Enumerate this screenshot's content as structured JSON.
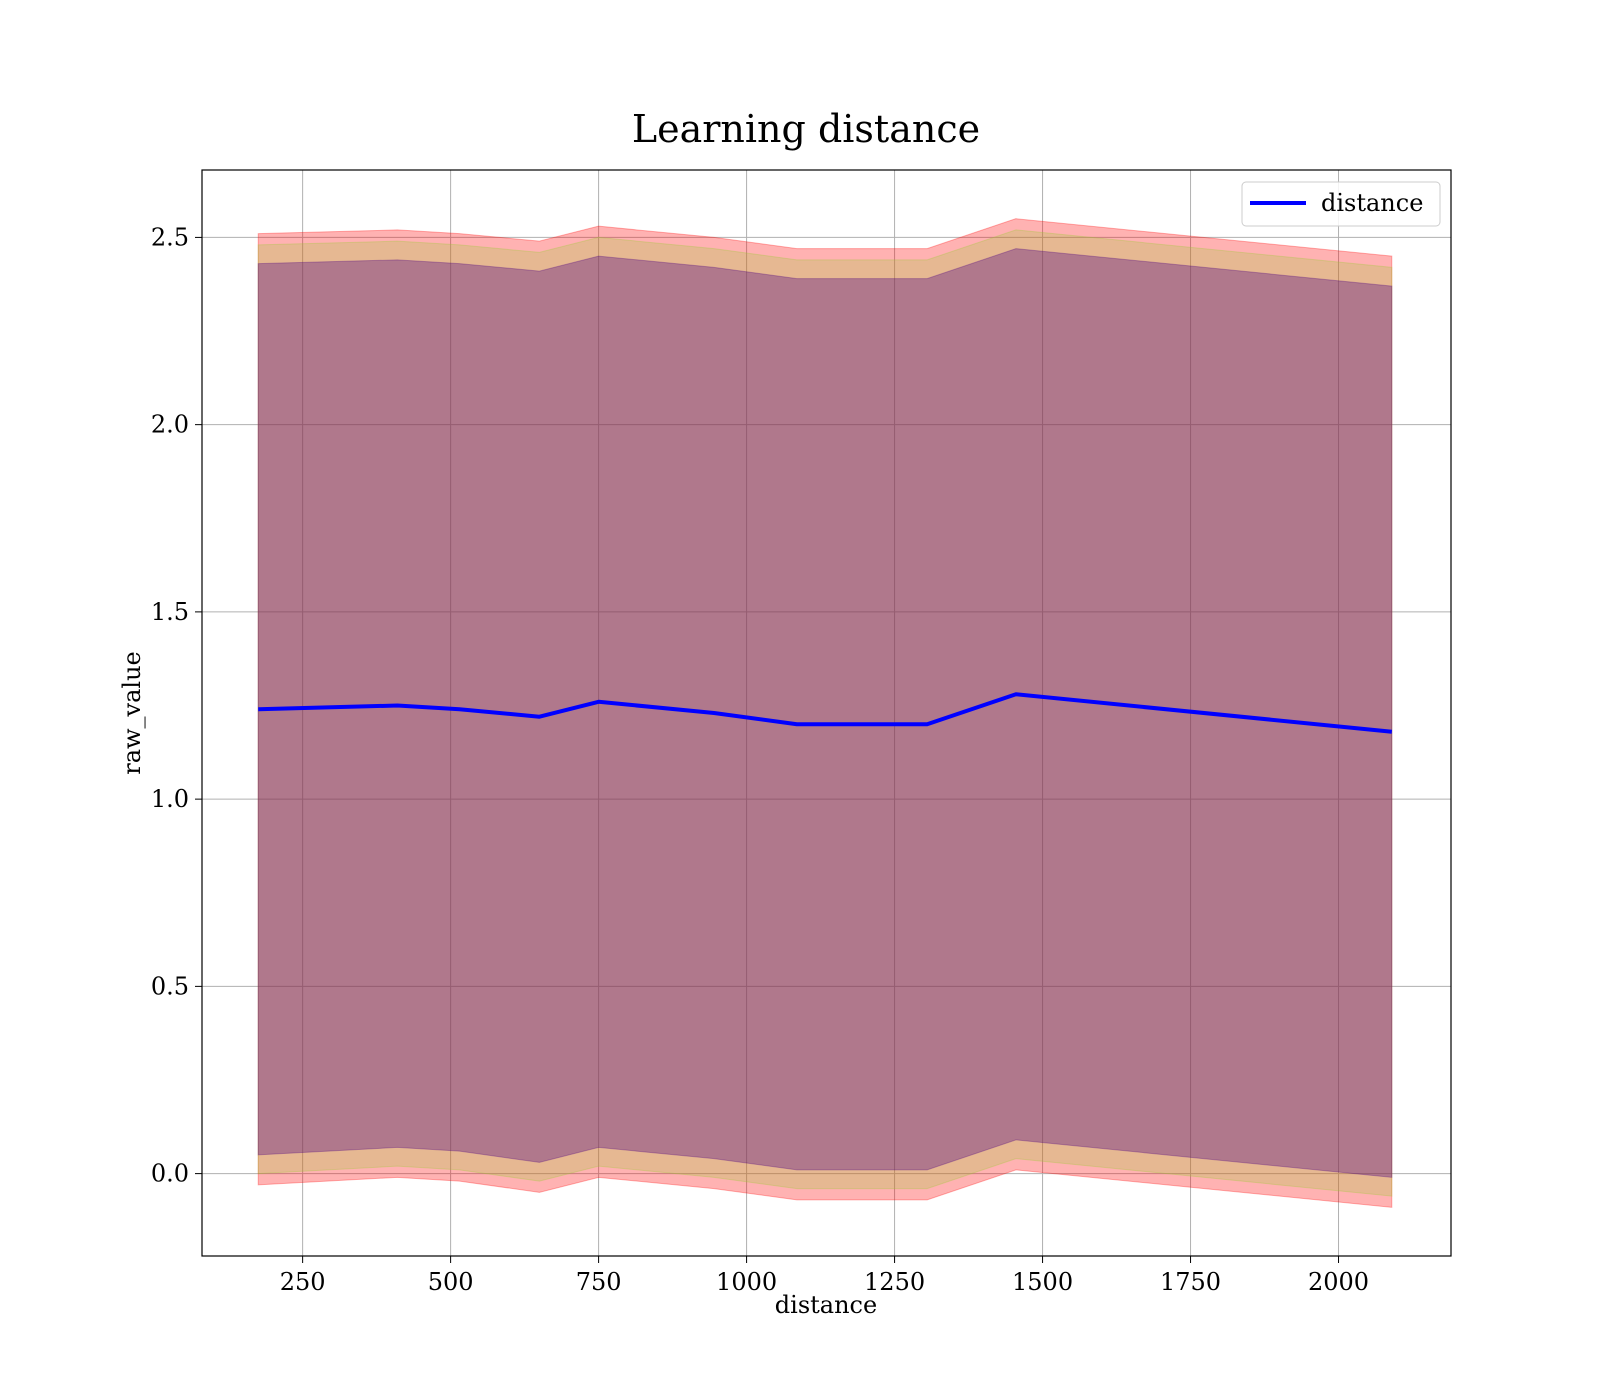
{
  "chart_data": {
    "type": "line",
    "title": "Learning distance",
    "xlabel": "distance",
    "ylabel": "raw_value",
    "xlim": [
      80,
      2190
    ],
    "ylim": [
      -0.22,
      2.68
    ],
    "xticks": [
      250,
      500,
      750,
      1000,
      1250,
      1500,
      1750,
      2000
    ],
    "xtick_labels": [
      "250",
      "500",
      "750",
      "1000",
      "1250",
      "1500",
      "1750",
      "2000"
    ],
    "yticks": [
      0.0,
      0.5,
      1.0,
      1.5,
      2.0,
      2.5
    ],
    "ytick_labels": [
      "0.0",
      "0.5",
      "1.0",
      "1.5",
      "2.0",
      "2.5"
    ],
    "grid": true,
    "legend_position": "top-right",
    "x": [
      175,
      410,
      515,
      650,
      750,
      945,
      1085,
      1305,
      1455,
      2090
    ],
    "series": [
      {
        "name": "distance",
        "color": "#0000ff",
        "values": [
          1.24,
          1.25,
          1.24,
          1.22,
          1.26,
          1.23,
          1.2,
          1.2,
          1.28,
          1.18
        ]
      }
    ],
    "bands": [
      {
        "color": "#ff0000",
        "opacity": 0.3,
        "upper": [
          2.51,
          2.52,
          2.51,
          2.49,
          2.53,
          2.5,
          2.47,
          2.47,
          2.55,
          2.45
        ],
        "lower": [
          -0.03,
          -0.01,
          -0.02,
          -0.05,
          -0.01,
          -0.04,
          -0.07,
          -0.07,
          0.01,
          -0.09
        ]
      },
      {
        "color": "#9acd32",
        "opacity": 0.25,
        "upper": [
          2.48,
          2.49,
          2.48,
          2.46,
          2.5,
          2.47,
          2.44,
          2.44,
          2.52,
          2.42
        ],
        "lower": [
          0.0,
          0.02,
          0.01,
          -0.02,
          0.02,
          -0.01,
          -0.04,
          -0.04,
          0.04,
          -0.06
        ]
      },
      {
        "color": "#4b0082",
        "opacity": 0.35,
        "upper": [
          2.43,
          2.44,
          2.43,
          2.41,
          2.45,
          2.42,
          2.39,
          2.39,
          2.47,
          2.37
        ],
        "lower": [
          0.05,
          0.07,
          0.06,
          0.03,
          0.07,
          0.04,
          0.01,
          0.01,
          0.09,
          -0.01
        ]
      }
    ]
  }
}
